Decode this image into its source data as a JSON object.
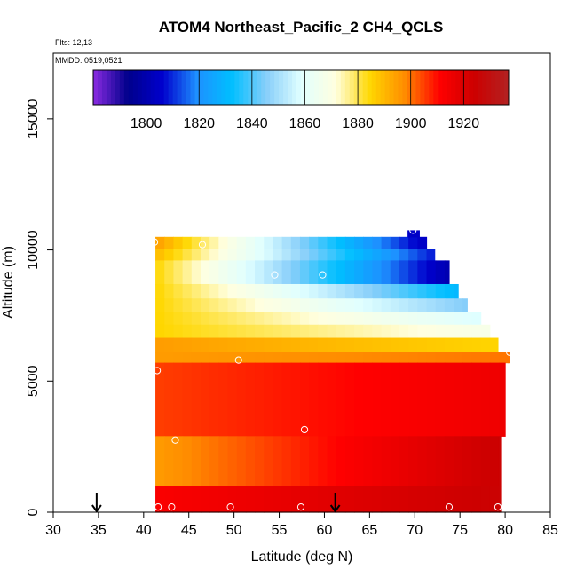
{
  "chart_data": {
    "type": "heatmap",
    "title": "ATOM4 Northeast_Pacific_2 CH4_QCLS",
    "flights_label": "Flts: 12,13",
    "mmdd_label": "MMDD: 0519,0521",
    "xlabel": "Latitude (deg N)",
    "ylabel": "Altitude (m)",
    "xlim": [
      30,
      85
    ],
    "ylim": [
      0,
      17500
    ],
    "x_ticks": [
      30,
      35,
      40,
      45,
      50,
      55,
      60,
      65,
      70,
      75,
      80,
      85
    ],
    "x_tick_labels": [
      "30",
      "35",
      "40",
      "45",
      "50",
      "55",
      "60",
      "65",
      "70",
      "75",
      "80",
      "85"
    ],
    "y_ticks": [
      0,
      5000,
      10000,
      15000
    ],
    "y_tick_labels": [
      "0",
      "5000",
      "10000",
      "15000"
    ],
    "colorbar": {
      "ticks": [
        1800,
        1820,
        1840,
        1860,
        1880,
        1900,
        1920
      ],
      "tick_labels": [
        "1800",
        "1820",
        "1840",
        "1860",
        "1880",
        "1900",
        "1920"
      ],
      "range": [
        1780,
        1937
      ],
      "colors": [
        "#8a2be2",
        "#00008b",
        "#0000cd",
        "#1e90ff",
        "#00bfff",
        "#87cefa",
        "#e0ffff",
        "#ffffe0",
        "#ffd700",
        "#ff8c00",
        "#ff0000",
        "#cd0000",
        "#b22222"
      ]
    },
    "arrows_lat": [
      34.8,
      61.2
    ],
    "sample_points": [
      {
        "lat": 41.2,
        "alt": 10300
      },
      {
        "lat": 46.5,
        "alt": 10200
      },
      {
        "lat": 69.8,
        "alt": 10750
      },
      {
        "lat": 54.5,
        "alt": 9050
      },
      {
        "lat": 59.8,
        "alt": 9050
      },
      {
        "lat": 41.5,
        "alt": 5400
      },
      {
        "lat": 50.5,
        "alt": 5800
      },
      {
        "lat": 80.5,
        "alt": 6100
      },
      {
        "lat": 57.8,
        "alt": 3150
      },
      {
        "lat": 43.5,
        "alt": 2750
      },
      {
        "lat": 41.6,
        "alt": 200
      },
      {
        "lat": 43.1,
        "alt": 200
      },
      {
        "lat": 49.6,
        "alt": 200
      },
      {
        "lat": 57.4,
        "alt": 200
      },
      {
        "lat": 73.8,
        "alt": 200
      },
      {
        "lat": 79.2,
        "alt": 200
      }
    ],
    "bands": [
      {
        "alt_min": 10050,
        "alt_max": 10500,
        "lat_min": 41.3,
        "lat_max": 70.5,
        "ch4_start": 1895,
        "ch4_end": 1805
      },
      {
        "alt_min": 10500,
        "alt_max": 10750,
        "lat_min": 69.2,
        "lat_max": 70.5,
        "ch4_start": 1805,
        "ch4_end": 1805
      },
      {
        "alt_min": 10050,
        "alt_max": 10500,
        "lat_min": 70.5,
        "lat_max": 71.3,
        "ch4_start": 1805,
        "ch4_end": 1805
      },
      {
        "alt_min": 9600,
        "alt_max": 10050,
        "lat_min": 41.3,
        "lat_max": 72.2,
        "ch4_start": 1890,
        "ch4_end": 1808
      },
      {
        "alt_min": 8700,
        "alt_max": 9600,
        "lat_min": 41.3,
        "lat_max": 73.8,
        "ch4_start": 1885,
        "ch4_end": 1800
      },
      {
        "alt_min": 8150,
        "alt_max": 8700,
        "lat_min": 41.3,
        "lat_max": 74.8,
        "ch4_start": 1885,
        "ch4_end": 1830
      },
      {
        "alt_min": 7650,
        "alt_max": 8150,
        "lat_min": 41.3,
        "lat_max": 75.8,
        "ch4_start": 1885,
        "ch4_end": 1845
      },
      {
        "alt_min": 7150,
        "alt_max": 7650,
        "lat_min": 41.3,
        "lat_max": 77.3,
        "ch4_start": 1885,
        "ch4_end": 1858
      },
      {
        "alt_min": 6650,
        "alt_max": 7150,
        "lat_min": 41.3,
        "lat_max": 78.3,
        "ch4_start": 1885,
        "ch4_end": 1868
      },
      {
        "alt_min": 6100,
        "alt_max": 6650,
        "lat_min": 41.3,
        "lat_max": 79.2,
        "ch4_start": 1895,
        "ch4_end": 1885
      },
      {
        "alt_min": 5700,
        "alt_max": 6100,
        "lat_min": 41.3,
        "lat_max": 80.5,
        "ch4_start": 1895,
        "ch4_end": 1900
      },
      {
        "alt_min": 2900,
        "alt_max": 5700,
        "lat_min": 41.3,
        "lat_max": 80.0,
        "ch4_start": 1905,
        "ch4_end": 1915
      },
      {
        "alt_min": 1000,
        "alt_max": 2900,
        "lat_min": 41.3,
        "lat_max": 79.5,
        "ch4_start": 1895,
        "ch4_end": 1925
      },
      {
        "alt_min": 0,
        "alt_max": 1000,
        "lat_min": 41.3,
        "lat_max": 79.5,
        "ch4_start": 1912,
        "ch4_end": 1925
      }
    ]
  }
}
